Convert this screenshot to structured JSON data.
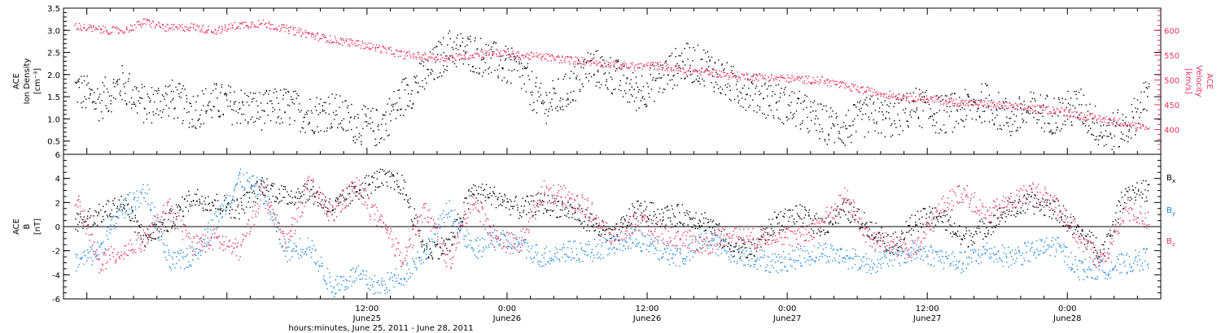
{
  "figure": {
    "xaxis_title": "hours:minutes, June 25, 2011 - June 28, 2011",
    "tick_times": [
      "12:00",
      "0:00",
      "12:00",
      "0:00",
      "12:00",
      "0:00"
    ],
    "tick_days": [
      "June25",
      "June26",
      "June26",
      "June27",
      "June27",
      "June28"
    ]
  },
  "chart_data": [
    {
      "type": "scatter",
      "panel": "top",
      "xlim_hours": [
        -14,
        80
      ],
      "grid": false,
      "left_axis": {
        "label_line1": "ACE",
        "label_line2": "Ion Density",
        "unit": "[cm⁻³]",
        "ylim": [
          0.2,
          3.5
        ],
        "ticks": [
          "0.5",
          "1.0",
          "1.5",
          "2.0",
          "2.5",
          "3.0",
          "3.5"
        ],
        "color": "#000000"
      },
      "right_axis": {
        "label_line1": "ACE",
        "label_line2": "Velocity",
        "unit": "[km/s]",
        "ylim": [
          350,
          645
        ],
        "ticks": [
          "400",
          "450",
          "500",
          "550",
          "600"
        ],
        "color": "#e8335f"
      },
      "series": [
        {
          "axis": "left",
          "color": "#000000",
          "x": [
            -13,
            -11,
            -9,
            -7,
            -5,
            -3,
            -1,
            1,
            3,
            5,
            7,
            9,
            11,
            13,
            15,
            17,
            19,
            21,
            23,
            25,
            27,
            29,
            31,
            33,
            35,
            37,
            39,
            41,
            43,
            45,
            47,
            49,
            51,
            53,
            55,
            57,
            59,
            61,
            63,
            65,
            67,
            69,
            71,
            73,
            75,
            77,
            79
          ],
          "y": [
            1.7,
            1.4,
            1.8,
            1.3,
            1.5,
            1.2,
            1.4,
            1.3,
            1.2,
            1.3,
            1.1,
            1.2,
            0.9,
            0.8,
            1.5,
            2.0,
            2.6,
            2.5,
            2.3,
            2.1,
            1.3,
            1.6,
            2.2,
            2.0,
            1.6,
            1.9,
            2.3,
            2.2,
            1.8,
            1.6,
            1.4,
            1.2,
            0.9,
            0.8,
            1.1,
            1.0,
            1.3,
            1.1,
            1.2,
            1.4,
            1.0,
            1.2,
            1.1,
            1.3,
            0.7,
            0.8,
            1.6
          ]
        },
        {
          "axis": "right",
          "color": "#e8335f",
          "x": [
            -13,
            -11,
            -9,
            -7,
            -5,
            -3,
            -1,
            1,
            3,
            5,
            7,
            9,
            11,
            13,
            15,
            17,
            19,
            21,
            23,
            25,
            27,
            29,
            31,
            33,
            35,
            37,
            39,
            41,
            43,
            45,
            47,
            49,
            51,
            53,
            55,
            57,
            59,
            61,
            63,
            65,
            67,
            69,
            71,
            73,
            75,
            77,
            79
          ],
          "y": [
            610,
            602,
            600,
            618,
            605,
            608,
            600,
            612,
            615,
            604,
            593,
            582,
            575,
            565,
            552,
            548,
            545,
            552,
            556,
            550,
            548,
            542,
            538,
            532,
            528,
            530,
            520,
            518,
            510,
            508,
            505,
            502,
            500,
            488,
            478,
            470,
            465,
            460,
            455,
            452,
            448,
            443,
            440,
            430,
            422,
            414,
            400
          ]
        }
      ]
    },
    {
      "type": "scatter",
      "panel": "bottom",
      "xlim_hours": [
        -14,
        80
      ],
      "grid": false,
      "ylim": [
        -6,
        6
      ],
      "left_axis": {
        "label_line1": "ACE",
        "label_line2": "B",
        "unit": "[nT]",
        "ticks": [
          "-6",
          "-4",
          "-2",
          "0",
          "2",
          "4",
          "6"
        ]
      },
      "zero_line": true,
      "legend_position": "right",
      "series": [
        {
          "name": "B",
          "sub": "x",
          "color": "#000000",
          "x": [
            -13,
            -11,
            -9,
            -7,
            -5,
            -3,
            -1,
            1,
            3,
            5,
            7,
            9,
            11,
            13,
            15,
            17,
            19,
            21,
            23,
            25,
            27,
            29,
            31,
            33,
            35,
            37,
            39,
            41,
            43,
            45,
            47,
            49,
            51,
            53,
            55,
            57,
            59,
            61,
            63,
            65,
            67,
            69,
            71,
            73,
            75,
            77,
            79
          ],
          "y": [
            0.5,
            1.0,
            2.0,
            -1.0,
            0.5,
            2.5,
            2.0,
            1.5,
            3.5,
            2.5,
            3.0,
            1.5,
            3.0,
            4.0,
            3.5,
            -2.0,
            -1.5,
            3.0,
            2.5,
            1.5,
            2.0,
            1.5,
            0.5,
            -1.0,
            1.5,
            1.0,
            1.0,
            0.5,
            -1.5,
            -2.0,
            0.5,
            1.0,
            0.0,
            1.5,
            0.0,
            -1.5,
            0.5,
            1.0,
            -1.0,
            0.0,
            1.5,
            2.0,
            1.5,
            -0.5,
            -2.0,
            3.0,
            3.0
          ]
        },
        {
          "name": "B",
          "sub": "y",
          "color": "#1e88e5",
          "x": [
            -13,
            -11,
            -9,
            -7,
            -5,
            -3,
            -1,
            1,
            3,
            5,
            7,
            9,
            11,
            13,
            15,
            17,
            19,
            21,
            23,
            25,
            27,
            29,
            31,
            33,
            35,
            37,
            39,
            41,
            43,
            45,
            47,
            49,
            51,
            53,
            55,
            57,
            59,
            61,
            63,
            65,
            67,
            69,
            71,
            73,
            75,
            77,
            79
          ],
          "y": [
            -3.0,
            -2.0,
            1.5,
            3.0,
            -3.0,
            -2.5,
            0.5,
            4.0,
            3.0,
            -2.0,
            -1.5,
            -5.0,
            -4.0,
            -5.0,
            -4.0,
            -2.0,
            1.5,
            -2.0,
            -1.0,
            -1.5,
            -2.5,
            -2.0,
            -2.0,
            -1.5,
            -1.0,
            -2.0,
            -2.5,
            -1.0,
            -2.0,
            -2.5,
            -3.0,
            -2.5,
            -2.0,
            -2.5,
            -3.0,
            -2.5,
            -2.0,
            -2.5,
            -3.0,
            -2.0,
            -2.5,
            -2.0,
            -1.5,
            -3.5,
            -3.5,
            -3.0,
            -2.5
          ]
        },
        {
          "name": "B",
          "sub": "z",
          "color": "#e8335f",
          "x": [
            -13,
            -11,
            -9,
            -7,
            -5,
            -3,
            -1,
            1,
            3,
            5,
            7,
            9,
            11,
            13,
            15,
            17,
            19,
            21,
            23,
            25,
            27,
            29,
            31,
            33,
            35,
            37,
            39,
            41,
            43,
            45,
            47,
            49,
            51,
            53,
            55,
            57,
            59,
            61,
            63,
            65,
            67,
            69,
            71,
            73,
            75,
            77,
            79
          ],
          "y": [
            2.5,
            -3.0,
            -2.0,
            -1.0,
            1.5,
            -1.5,
            -1.0,
            -2.0,
            3.0,
            -1.5,
            3.5,
            1.0,
            3.5,
            0.5,
            -2.5,
            1.5,
            -3.0,
            2.5,
            -1.0,
            -1.5,
            3.0,
            2.5,
            1.5,
            -1.0,
            0.5,
            -0.5,
            -1.0,
            -1.5,
            -0.5,
            -1.0,
            -0.5,
            -1.0,
            0.5,
            2.5,
            -1.0,
            -1.5,
            -2.0,
            1.5,
            3.0,
            1.0,
            2.0,
            3.0,
            2.0,
            -1.0,
            -3.0,
            1.5,
            0.5
          ]
        }
      ]
    }
  ]
}
